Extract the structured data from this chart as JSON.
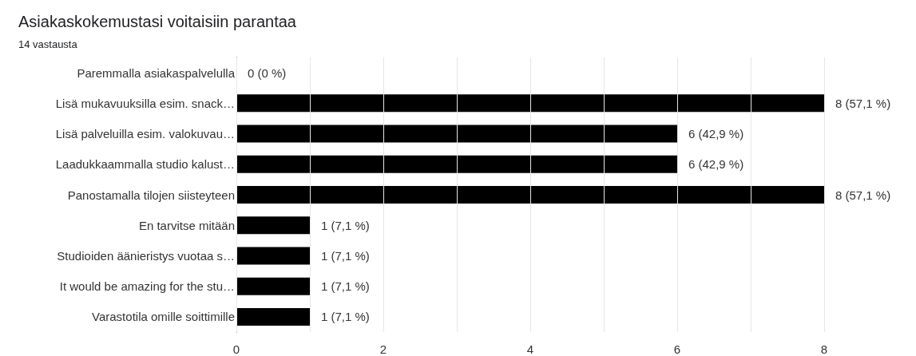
{
  "chart_data": {
    "type": "bar",
    "orientation": "horizontal",
    "title": "Asiakaskokemustasi voitaisiin parantaa",
    "subtitle": "14 vastausta",
    "categories": [
      "Paremmalla asiakaspalvelulla",
      "Lisä mukavuuksilla esim. snack…",
      "Lisä palveluilla esim. valokuvau…",
      "Laadukkaammalla studio kalust…",
      "Panostamalla tilojen siisteyteen",
      "En tarvitse mitään",
      "Studioiden äänieristys vuotaa s…",
      "It would be amazing for the stu…",
      "Varastotila omille soittimille"
    ],
    "values": [
      0,
      8,
      6,
      6,
      8,
      1,
      1,
      1,
      1
    ],
    "value_labels": [
      "0 (0 %)",
      "8 (57,1 %)",
      "6 (42,9 %)",
      "6 (42,9 %)",
      "8 (57,1 %)",
      "1 (7,1 %)",
      "1 (7,1 %)",
      "1 (7,1 %)",
      "1 (7,1 %)"
    ],
    "color": "#000000",
    "xlim": [
      0,
      8
    ],
    "xticks": [
      0,
      {
        "value": 1,
        "label": null
      },
      2,
      {
        "value": 3,
        "label": null
      },
      4,
      {
        "value": 5,
        "label": null
      },
      6,
      {
        "value": 7,
        "label": null
      },
      8
    ],
    "grid": "x"
  }
}
